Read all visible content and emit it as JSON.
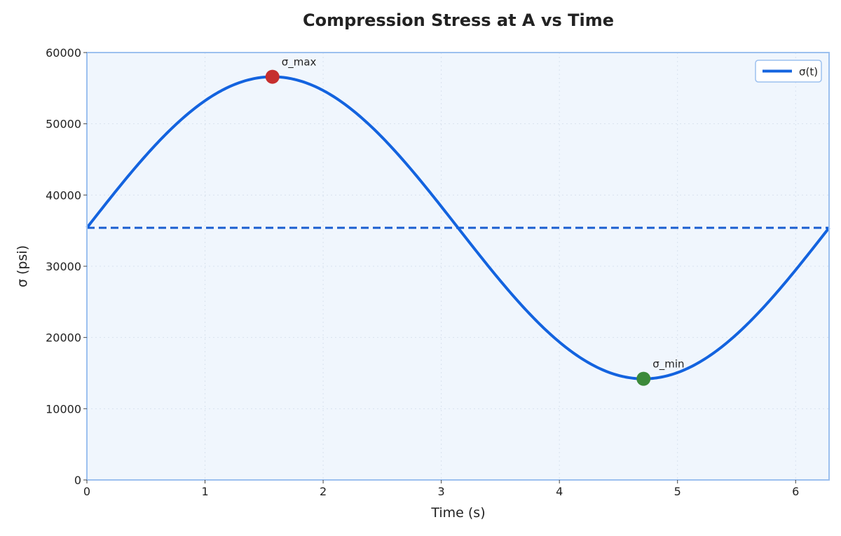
{
  "chart_data": {
    "type": "line",
    "title": "Compression Stress at A vs Time",
    "xlabel": "Time (s)",
    "ylabel": "σ (psi)",
    "xlim": [
      0,
      6.2832
    ],
    "ylim": [
      0,
      60000
    ],
    "x_ticks": [
      0,
      1,
      2,
      3,
      4,
      5,
      6
    ],
    "y_ticks": [
      0,
      10000,
      20000,
      30000,
      40000,
      50000,
      60000
    ],
    "x_tick_labels": [
      "0",
      "1",
      "2",
      "3",
      "4",
      "5",
      "6"
    ],
    "y_tick_labels": [
      "0",
      "10000",
      "20000",
      "30000",
      "40000",
      "50000",
      "60000"
    ],
    "grid": true,
    "legend_position": "top-right",
    "series": [
      {
        "name": "σ(t)",
        "function": "mean + amplitude * sin(t)",
        "mean": 35400,
        "amplitude": 21200,
        "x_range": [
          0,
          6.2832
        ],
        "color": "#1363DF"
      }
    ],
    "reference_lines": [
      {
        "axis": "y",
        "value": 35400,
        "style": "dashed",
        "color": "#1A5FD0"
      }
    ],
    "annotations": [
      {
        "label": "σ_max",
        "x": 1.5708,
        "y": 56600,
        "color": "#C62F2F"
      },
      {
        "label": "σ_min",
        "x": 4.7124,
        "y": 14200,
        "color": "#3C8A3A"
      }
    ],
    "colors": {
      "plot_background": "#F0F6FD",
      "plot_border": "#9CC0EF",
      "grid": "#D8E2EE"
    }
  }
}
